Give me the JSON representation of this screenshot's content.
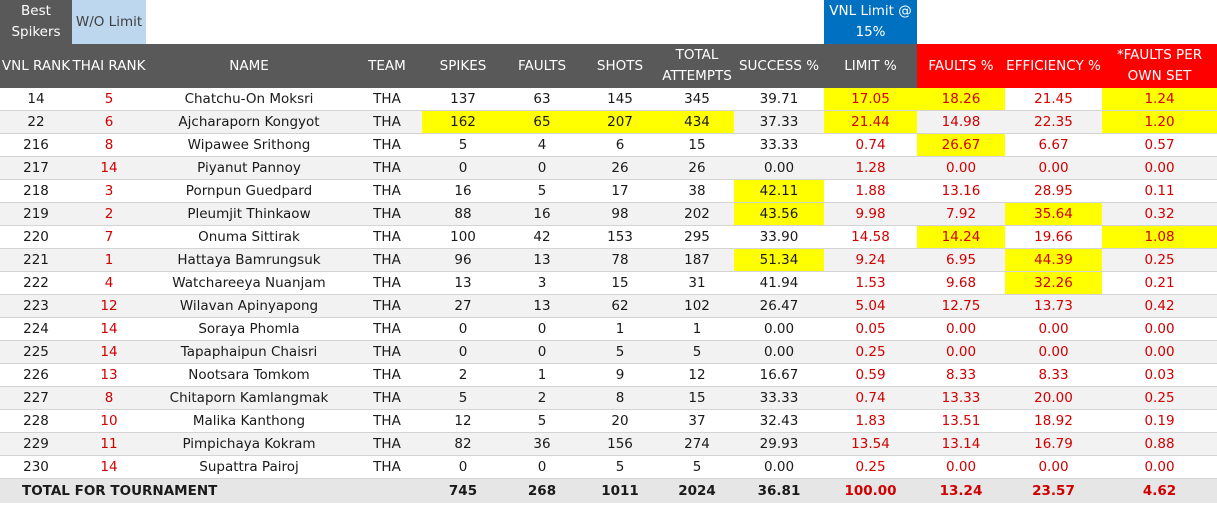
{
  "top_labels": {
    "best_spikers": "Best Spikers",
    "wo_limit": "W/O Limit",
    "vnl_limit": "VNL Limit @ 15%"
  },
  "columns": [
    "VNL RANK",
    "THAI RANK",
    "NAME",
    "TEAM",
    "SPIKES",
    "FAULTS",
    "SHOTS",
    "TOTAL ATTEMPTS",
    "SUCCESS %",
    "LIMIT %",
    "FAULTS %",
    "EFFICIENCY %",
    "*FAULTS PER OWN SET"
  ],
  "rows": [
    {
      "vnl_rank": "14",
      "thai_rank": "5",
      "name": "Chatchu-On Moksri",
      "team": "THA",
      "spikes": "137",
      "faults": "63",
      "shots": "145",
      "total": "345",
      "success": "39.71",
      "limit": "17.05",
      "faults_pct": "18.26",
      "efficiency": "21.45",
      "faults_per_set": "1.24"
    },
    {
      "vnl_rank": "22",
      "thai_rank": "6",
      "name": "Ajcharaporn Kongyot",
      "team": "THA",
      "spikes": "162",
      "faults": "65",
      "shots": "207",
      "total": "434",
      "success": "37.33",
      "limit": "21.44",
      "faults_pct": "14.98",
      "efficiency": "22.35",
      "faults_per_set": "1.20"
    },
    {
      "vnl_rank": "216",
      "thai_rank": "8",
      "name": "Wipawee Srithong",
      "team": "THA",
      "spikes": "5",
      "faults": "4",
      "shots": "6",
      "total": "15",
      "success": "33.33",
      "limit": "0.74",
      "faults_pct": "26.67",
      "efficiency": "6.67",
      "faults_per_set": "0.57"
    },
    {
      "vnl_rank": "217",
      "thai_rank": "14",
      "name": "Piyanut Pannoy",
      "team": "THA",
      "spikes": "0",
      "faults": "0",
      "shots": "26",
      "total": "26",
      "success": "0.00",
      "limit": "1.28",
      "faults_pct": "0.00",
      "efficiency": "0.00",
      "faults_per_set": "0.00"
    },
    {
      "vnl_rank": "218",
      "thai_rank": "3",
      "name": "Pornpun Guedpard",
      "team": "THA",
      "spikes": "16",
      "faults": "5",
      "shots": "17",
      "total": "38",
      "success": "42.11",
      "limit": "1.88",
      "faults_pct": "13.16",
      "efficiency": "28.95",
      "faults_per_set": "0.11"
    },
    {
      "vnl_rank": "219",
      "thai_rank": "2",
      "name": "Pleumjit Thinkaow",
      "team": "THA",
      "spikes": "88",
      "faults": "16",
      "shots": "98",
      "total": "202",
      "success": "43.56",
      "limit": "9.98",
      "faults_pct": "7.92",
      "efficiency": "35.64",
      "faults_per_set": "0.32"
    },
    {
      "vnl_rank": "220",
      "thai_rank": "7",
      "name": "Onuma Sittirak",
      "team": "THA",
      "spikes": "100",
      "faults": "42",
      "shots": "153",
      "total": "295",
      "success": "33.90",
      "limit": "14.58",
      "faults_pct": "14.24",
      "efficiency": "19.66",
      "faults_per_set": "1.08"
    },
    {
      "vnl_rank": "221",
      "thai_rank": "1",
      "name": "Hattaya Bamrungsuk",
      "team": "THA",
      "spikes": "96",
      "faults": "13",
      "shots": "78",
      "total": "187",
      "success": "51.34",
      "limit": "9.24",
      "faults_pct": "6.95",
      "efficiency": "44.39",
      "faults_per_set": "0.25"
    },
    {
      "vnl_rank": "222",
      "thai_rank": "4",
      "name": "Watchareeya Nuanjam",
      "team": "THA",
      "spikes": "13",
      "faults": "3",
      "shots": "15",
      "total": "31",
      "success": "41.94",
      "limit": "1.53",
      "faults_pct": "9.68",
      "efficiency": "32.26",
      "faults_per_set": "0.21"
    },
    {
      "vnl_rank": "223",
      "thai_rank": "12",
      "name": "Wilavan Apinyapong",
      "team": "THA",
      "spikes": "27",
      "faults": "13",
      "shots": "62",
      "total": "102",
      "success": "26.47",
      "limit": "5.04",
      "faults_pct": "12.75",
      "efficiency": "13.73",
      "faults_per_set": "0.42"
    },
    {
      "vnl_rank": "224",
      "thai_rank": "14",
      "name": "Soraya Phomla",
      "team": "THA",
      "spikes": "0",
      "faults": "0",
      "shots": "1",
      "total": "1",
      "success": "0.00",
      "limit": "0.05",
      "faults_pct": "0.00",
      "efficiency": "0.00",
      "faults_per_set": "0.00"
    },
    {
      "vnl_rank": "225",
      "thai_rank": "14",
      "name": "Tapaphaipun Chaisri",
      "team": "THA",
      "spikes": "0",
      "faults": "0",
      "shots": "5",
      "total": "5",
      "success": "0.00",
      "limit": "0.25",
      "faults_pct": "0.00",
      "efficiency": "0.00",
      "faults_per_set": "0.00"
    },
    {
      "vnl_rank": "226",
      "thai_rank": "13",
      "name": "Nootsara Tomkom",
      "team": "THA",
      "spikes": "2",
      "faults": "1",
      "shots": "9",
      "total": "12",
      "success": "16.67",
      "limit": "0.59",
      "faults_pct": "8.33",
      "efficiency": "8.33",
      "faults_per_set": "0.03"
    },
    {
      "vnl_rank": "227",
      "thai_rank": "8",
      "name": "Chitaporn Kamlangmak",
      "team": "THA",
      "spikes": "5",
      "faults": "2",
      "shots": "8",
      "total": "15",
      "success": "33.33",
      "limit": "0.74",
      "faults_pct": "13.33",
      "efficiency": "20.00",
      "faults_per_set": "0.25"
    },
    {
      "vnl_rank": "228",
      "thai_rank": "10",
      "name": "Malika Kanthong",
      "team": "THA",
      "spikes": "12",
      "faults": "5",
      "shots": "20",
      "total": "37",
      "success": "32.43",
      "limit": "1.83",
      "faults_pct": "13.51",
      "efficiency": "18.92",
      "faults_per_set": "0.19"
    },
    {
      "vnl_rank": "229",
      "thai_rank": "11",
      "name": "Pimpichaya Kokram",
      "team": "THA",
      "spikes": "82",
      "faults": "36",
      "shots": "156",
      "total": "274",
      "success": "29.93",
      "limit": "13.54",
      "faults_pct": "13.14",
      "efficiency": "16.79",
      "faults_per_set": "0.88"
    },
    {
      "vnl_rank": "230",
      "thai_rank": "14",
      "name": "Supattra Pairoj",
      "team": "THA",
      "spikes": "0",
      "faults": "0",
      "shots": "5",
      "total": "5",
      "success": "0.00",
      "limit": "0.25",
      "faults_pct": "0.00",
      "efficiency": "0.00",
      "faults_per_set": "0.00"
    }
  ],
  "totals": {
    "label": "TOTAL FOR TOURNAMENT",
    "spikes": "745",
    "faults": "268",
    "shots": "1011",
    "total": "2024",
    "success": "36.81",
    "limit": "100.00",
    "faults_pct": "13.24",
    "efficiency": "23.57",
    "faults_per_set": "4.62"
  },
  "highlights": {
    "0": [
      "limit",
      "faults_pct",
      "faults_per_set"
    ],
    "1": [
      "spikes",
      "faults",
      "shots",
      "total",
      "limit",
      "faults_per_set"
    ],
    "2": [
      "faults_pct"
    ],
    "4": [
      "success"
    ],
    "5": [
      "success",
      "efficiency"
    ],
    "6": [
      "faults_pct",
      "faults_per_set"
    ],
    "7": [
      "success",
      "efficiency"
    ],
    "8": [
      "efficiency"
    ]
  },
  "colors": {
    "header_gray": "#595959",
    "header_red": "#ff0000",
    "wo_limit_blue": "#bdd7ee",
    "vnl_blue": "#0070c0",
    "highlight_yellow": "#ffff00",
    "red_text": "#d00000",
    "total_bg": "#e7e6e6"
  }
}
